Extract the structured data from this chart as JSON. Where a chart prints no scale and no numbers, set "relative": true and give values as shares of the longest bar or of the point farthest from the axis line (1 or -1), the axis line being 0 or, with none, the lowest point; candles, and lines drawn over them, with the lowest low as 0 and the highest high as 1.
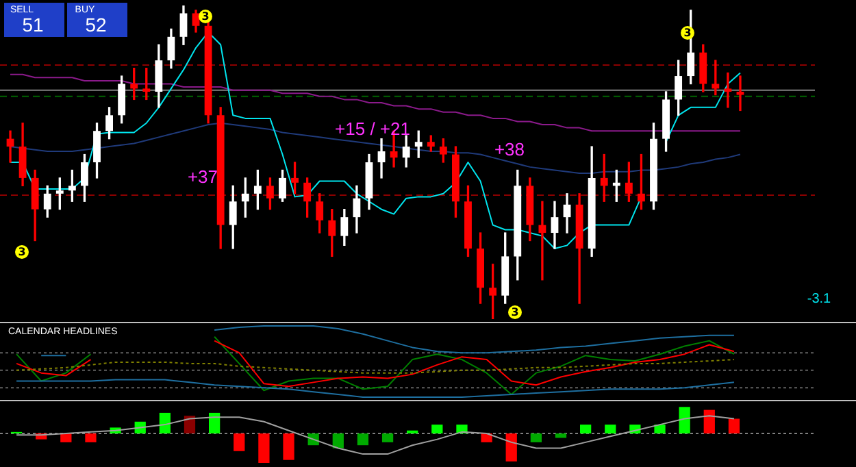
{
  "chart_data": [
    {
      "type": "candlestick",
      "relative": true,
      "categories": [
        null,
        null,
        null,
        null,
        null,
        null,
        null,
        null,
        null,
        null,
        null,
        null,
        null,
        null,
        null,
        null,
        null,
        null,
        null,
        null,
        null,
        null,
        null,
        null,
        null,
        null,
        null,
        null,
        null,
        null,
        null,
        null,
        null,
        null,
        null,
        null,
        null,
        null,
        null,
        null,
        null,
        null,
        null,
        null,
        null,
        null,
        null,
        null,
        null,
        null,
        null,
        null,
        null,
        null,
        null,
        null,
        null,
        null,
        null,
        null
      ],
      "ohlc": [
        [
          0.575,
          0.6,
          0.5,
          0.55
        ],
        [
          0.55,
          0.625,
          0.425,
          0.45
        ],
        [
          0.45,
          0.475,
          0.25,
          0.35
        ],
        [
          0.35,
          0.425,
          0.325,
          0.4
        ],
        [
          0.4,
          0.45,
          0.35,
          0.41
        ],
        [
          0.41,
          0.475,
          0.375,
          0.425
        ],
        [
          0.425,
          0.525,
          0.375,
          0.5
        ],
        [
          0.5,
          0.625,
          0.45,
          0.6
        ],
        [
          0.6,
          0.675,
          0.575,
          0.65
        ],
        [
          0.65,
          0.775,
          0.625,
          0.75
        ],
        [
          0.75,
          0.8,
          0.7,
          0.735
        ],
        [
          0.735,
          0.8,
          0.7,
          0.725
        ],
        [
          0.725,
          0.875,
          0.675,
          0.825
        ],
        [
          0.825,
          0.925,
          0.8,
          0.9
        ],
        [
          0.9,
          1,
          0.875,
          0.975
        ],
        [
          0.975,
          0.985,
          0.915,
          0.935
        ],
        [
          0.935,
          0.95,
          0.625,
          0.65
        ],
        [
          0.65,
          0.675,
          0.225,
          0.3
        ],
        [
          0.3,
          0.425,
          0.225,
          0.375
        ],
        [
          0.375,
          0.45,
          0.325,
          0.4
        ],
        [
          0.4,
          0.475,
          0.35,
          0.425
        ],
        [
          0.425,
          0.45,
          0.35,
          0.385
        ],
        [
          0.385,
          0.475,
          0.375,
          0.45
        ],
        [
          0.45,
          0.5,
          0.4,
          0.435
        ],
        [
          0.435,
          0.45,
          0.325,
          0.375
        ],
        [
          0.375,
          0.4,
          0.275,
          0.315
        ],
        [
          0.315,
          0.35,
          0.2,
          0.265
        ],
        [
          0.265,
          0.35,
          0.235,
          0.325
        ],
        [
          0.325,
          0.425,
          0.275,
          0.385
        ],
        [
          0.385,
          0.525,
          0.35,
          0.5
        ],
        [
          0.5,
          0.575,
          0.45,
          0.535
        ],
        [
          0.535,
          0.6,
          0.485,
          0.515
        ],
        [
          0.515,
          0.585,
          0.485,
          0.55
        ],
        [
          0.55,
          0.6,
          0.515,
          0.565
        ],
        [
          0.565,
          0.585,
          0.535,
          0.55
        ],
        [
          0.55,
          0.575,
          0.5,
          0.525
        ],
        [
          0.525,
          0.55,
          0.325,
          0.375
        ],
        [
          0.375,
          0.425,
          0.2,
          0.225
        ],
        [
          0.225,
          0.275,
          0.05,
          0.1
        ],
        [
          0.1,
          0.175,
          0,
          0.075
        ],
        [
          0.075,
          0.275,
          0.05,
          0.2
        ],
        [
          0.2,
          0.475,
          0.125,
          0.425
        ],
        [
          0.425,
          0.45,
          0.25,
          0.3
        ],
        [
          0.3,
          0.375,
          0.125,
          0.275
        ],
        [
          0.275,
          0.375,
          0.225,
          0.325
        ],
        [
          0.325,
          0.4,
          0.275,
          0.365
        ],
        [
          0.365,
          0.4,
          0.05,
          0.225
        ],
        [
          0.225,
          0.55,
          0.2,
          0.45
        ],
        [
          0.45,
          0.525,
          0.375,
          0.425
        ],
        [
          0.425,
          0.475,
          0.375,
          0.435
        ],
        [
          0.435,
          0.5,
          0.375,
          0.4
        ],
        [
          0.4,
          0.525,
          0.35,
          0.375
        ],
        [
          0.375,
          0.625,
          0.35,
          0.575
        ],
        [
          0.575,
          0.725,
          0.535,
          0.7
        ],
        [
          0.7,
          0.825,
          0.65,
          0.775
        ],
        [
          0.775,
          0.985,
          0.75,
          0.85
        ],
        [
          0.85,
          0.875,
          0.725,
          0.75
        ],
        [
          0.75,
          0.825,
          0.715,
          0.735
        ],
        [
          0.735,
          0.785,
          0.675,
          0.725
        ],
        [
          0.725,
          0.775,
          0.665,
          0.715
        ]
      ],
      "series": [
        {
          "type": "line",
          "color": "#00e5ee",
          "values": [
            0.5,
            0.5,
            0.415,
            0.415,
            0.415,
            0.415,
            0.45,
            0.59,
            0.595,
            0.595,
            0.595,
            0.625,
            0.675,
            0.735,
            0.795,
            0.865,
            0.915,
            0.875,
            0.65,
            0.64,
            0.64,
            0.64,
            0.525,
            0.39,
            0.395,
            0.44,
            0.44,
            0.44,
            0.4,
            0.375,
            0.35,
            0.335,
            0.385,
            0.39,
            0.39,
            0.4,
            0.435,
            0.5,
            0.44,
            0.3,
            0.285,
            0.285,
            0.275,
            0.265,
            0.225,
            0.235,
            0.275,
            0.3,
            0.3,
            0.3,
            0.3,
            0.39,
            null,
            0.565,
            0.65,
            0.675,
            0.675,
            0.675,
            0.75,
            0.785
          ]
        },
        {
          "type": "line",
          "color": "#1f3a7a",
          "values": [
            0.55,
            0.545,
            0.54,
            0.535,
            0.535,
            0.535,
            0.54,
            0.545,
            0.55,
            0.555,
            0.56,
            0.57,
            0.58,
            0.59,
            0.6,
            0.61,
            0.62,
            0.625,
            0.62,
            0.615,
            0.61,
            0.605,
            0.595,
            0.59,
            0.585,
            0.58,
            0.575,
            0.57,
            0.565,
            0.56,
            0.555,
            0.55,
            0.545,
            0.54,
            0.535,
            0.535,
            0.53,
            0.53,
            0.525,
            0.515,
            0.505,
            0.495,
            0.485,
            0.48,
            0.475,
            0.47,
            0.465,
            0.465,
            0.47,
            0.47,
            0.47,
            0.475,
            0.475,
            0.48,
            0.485,
            0.495,
            0.5,
            0.51,
            0.515,
            0.525
          ]
        },
        {
          "type": "line",
          "color": "#8b1a8b",
          "values": [
            0.78,
            0.78,
            0.77,
            0.77,
            0.77,
            0.77,
            0.76,
            0.76,
            0.76,
            0.76,
            0.75,
            0.75,
            0.75,
            0.75,
            0.74,
            0.74,
            0.74,
            0.74,
            0.73,
            0.73,
            0.73,
            0.73,
            0.72,
            0.72,
            0.72,
            0.71,
            0.71,
            0.7,
            0.7,
            0.69,
            0.69,
            0.68,
            0.68,
            0.67,
            0.67,
            0.66,
            0.66,
            0.65,
            0.65,
            0.64,
            0.64,
            0.63,
            0.63,
            0.62,
            0.62,
            0.61,
            0.61,
            0.6,
            0.6,
            0.6,
            0.6,
            0.6,
            0.6,
            0.6,
            0.6,
            0.6,
            0.6,
            0.6,
            0.6,
            0.6
          ]
        }
      ],
      "ref_lines": [
        {
          "axis": "y",
          "value": 0.81,
          "color": "#8b0000",
          "line_style": "dashed"
        },
        {
          "axis": "y",
          "value": 0.73,
          "color": "#808080",
          "line_style": "solid"
        },
        {
          "axis": "y",
          "value": 0.71,
          "color": "#006400",
          "line_style": "dashed"
        },
        {
          "axis": "y",
          "value": 0.395,
          "color": "#8b0000",
          "line_style": "dashed"
        }
      ],
      "annotations": [
        "+37",
        "+15 / +21",
        "+38",
        "3",
        "3",
        "3",
        "3",
        "SELL",
        "BUY",
        "51",
        "52",
        "-3.1"
      ]
    },
    {
      "type": "line",
      "relative": true,
      "categories": [
        null,
        null,
        null,
        null,
        null,
        null,
        null,
        null,
        null,
        null,
        null,
        null,
        null,
        null,
        null,
        null,
        null,
        null,
        null,
        null,
        null,
        null,
        null,
        null,
        null,
        null,
        null,
        null,
        null,
        null
      ],
      "series": [
        {
          "color": "#1e6fa0",
          "values": [
            null,
            0.585,
            0.585,
            null,
            null,
            null,
            null,
            null,
            0.943,
            0.981,
            1,
            1,
            1,
            0.962,
            0.887,
            0.792,
            0.698,
            0.642,
            0.623,
            0.623,
            0.642,
            0.66,
            0.698,
            0.717,
            0.755,
            0.792,
            0.83,
            0.849,
            0.868,
            0.868
          ]
        },
        {
          "color": "#1e6fa0",
          "values": [
            0.226,
            0.226,
            0.226,
            0.226,
            0.245,
            0.245,
            0.245,
            0.208,
            0.17,
            0.151,
            0.132,
            0.113,
            0.075,
            0.038,
            0,
            0,
            0,
            0,
            0,
            0.019,
            0.038,
            0.057,
            0.075,
            0.094,
            0.113,
            0.113,
            0.113,
            0.132,
            0.17,
            0.208
          ]
        },
        {
          "color": "#808000",
          "line_style": "dotted",
          "values": [
            0.377,
            0.396,
            0.415,
            0.453,
            0.491,
            0.491,
            0.491,
            0.472,
            0.472,
            0.434,
            0.415,
            0.396,
            0.377,
            0.358,
            0.34,
            0.34,
            0.34,
            0.358,
            0.377,
            0.377,
            0.396,
            0.415,
            0.415,
            0.434,
            0.453,
            0.472,
            0.472,
            0.491,
            0.509,
            0.528
          ]
        },
        {
          "color": "#ff0000",
          "values": [
            0.472,
            0.34,
            0.302,
            0.528,
            null,
            null,
            null,
            null,
            0.792,
            0.623,
            0.189,
            0.151,
            0.208,
            0.264,
            0.283,
            0.264,
            0.321,
            0.453,
            0.566,
            0.528,
            0.226,
            0.17,
            0.283,
            0.358,
            0.415,
            0.491,
            0.528,
            0.604,
            0.736,
            0.642
          ]
        },
        {
          "color": "#008000",
          "values": [
            0.604,
            0.226,
            0.34,
            0.604,
            null,
            null,
            null,
            null,
            0.849,
            0.472,
            0.094,
            0.226,
            0.264,
            0.264,
            0.113,
            0.151,
            0.528,
            0.604,
            0.528,
            0.34,
            0.038,
            0.34,
            0.434,
            0.585,
            0.528,
            0.509,
            0.604,
            0.717,
            0.792,
            0.604
          ]
        }
      ],
      "ref_lines": [
        {
          "axis": "y",
          "value": 0.623,
          "color": "#606060",
          "line_style": "dotted"
        },
        {
          "axis": "y",
          "value": 0.377,
          "color": "#606060",
          "line_style": "dotted"
        },
        {
          "axis": "y",
          "value": 0.132,
          "color": "#606060",
          "line_style": "dotted"
        }
      ],
      "annotations": [
        "CALENDAR HEADLINES"
      ]
    },
    {
      "type": "bar",
      "relative": true,
      "categories": [
        null,
        null,
        null,
        null,
        null,
        null,
        null,
        null,
        null,
        null,
        null,
        null,
        null,
        null,
        null,
        null,
        null,
        null,
        null,
        null,
        null,
        null,
        null,
        null,
        null,
        null,
        null,
        null,
        null,
        null
      ],
      "values": [
        0.05,
        -0.2,
        -0.3,
        -0.3,
        0.2,
        0.4,
        0.7,
        0.6,
        0.7,
        -0.6,
        -1,
        -0.9,
        -0.4,
        -0.5,
        -0.4,
        -0.3,
        0.1,
        0.3,
        0.3,
        -0.3,
        -0.95,
        -0.3,
        -0.15,
        0.3,
        0.3,
        0.3,
        0.3,
        0.9,
        0.8,
        0.5
      ],
      "colors": [
        "#00ff00",
        "#ff0000",
        "#ff0000",
        "#ff0000",
        "#00ff00",
        "#00ff00",
        "#00ff00",
        "#8b0000",
        "#00ff00",
        "#ff0000",
        "#ff0000",
        "#ff0000",
        "#00aa00",
        "#00aa00",
        "#00aa00",
        "#00aa00",
        "#00ff00",
        "#00ff00",
        "#00ff00",
        "#ff0000",
        "#ff0000",
        "#00aa00",
        "#00aa00",
        "#00ff00",
        "#00ff00",
        "#00ff00",
        "#00ff00",
        "#00ff00",
        "#ff0000",
        "#ff0000"
      ],
      "series": [
        {
          "type": "line",
          "color": "#a0a0a0",
          "values": [
            -0.05,
            -0.05,
            0,
            0.05,
            0.1,
            0.2,
            0.3,
            0.5,
            0.55,
            0.55,
            0.4,
            0.1,
            -0.2,
            -0.5,
            -0.7,
            -0.7,
            -0.4,
            -0.2,
            0.05,
            0,
            -0.3,
            -0.5,
            -0.5,
            -0.3,
            -0.1,
            0.1,
            0.3,
            0.5,
            0.6,
            0.5
          ]
        }
      ],
      "ref_lines": [
        {
          "axis": "y",
          "value": 0,
          "color": "#808080",
          "line_style": "dotted"
        }
      ]
    }
  ]
}
